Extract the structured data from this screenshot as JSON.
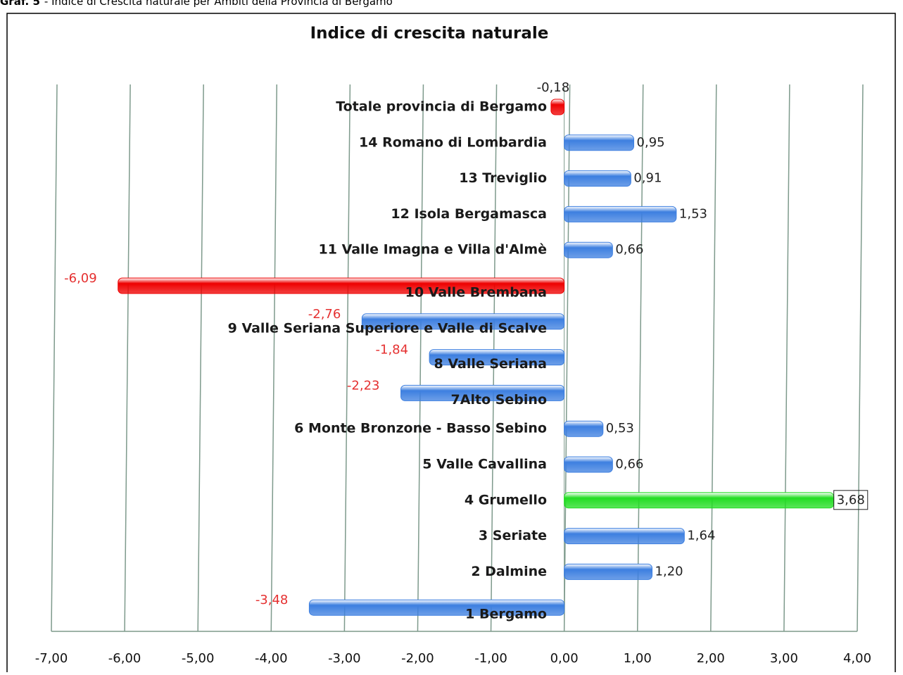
{
  "caption": {
    "number": "Graf. 5",
    "text": "- Indice di Crescita naturale per Ambiti della Provincia di Bergamo"
  },
  "chart_data": {
    "type": "hbar",
    "title": "Indice di crescita naturale",
    "categories": [
      "Totale provincia di Bergamo",
      "14 Romano di Lombardia",
      "13 Treviglio",
      "12 Isola Bergamasca",
      "11 Valle Imagna e Villa d'Almè",
      "10 Valle Brembana",
      "9 Valle Seriana Superiore e Valle di Scalve",
      "8 Valle Seriana",
      "7Alto Sebino",
      "6 Monte Bronzone - Basso Sebino",
      "5 Valle Cavallina",
      "4 Grumello",
      "3 Seriate",
      "2 Dalmine",
      "1 Bergamo"
    ],
    "values": [
      -0.18,
      0.95,
      0.91,
      1.53,
      0.66,
      -6.09,
      -2.76,
      -1.84,
      -2.23,
      0.53,
      0.66,
      3.68,
      1.64,
      1.2,
      -3.48
    ],
    "value_labels": [
      "-0,18",
      "0,95",
      "0,91",
      "1,53",
      "0,66",
      "-6,09",
      "-2,76",
      "-1,84",
      "-2,23",
      "0,53",
      "0,66",
      "3,68",
      "1,64",
      "1,20",
      "-3,48"
    ],
    "colors": [
      "#ee0000",
      "#3d7fe0",
      "#3d7fe0",
      "#3d7fe0",
      "#3d7fe0",
      "#ee0000",
      "#3d7fe0",
      "#3d7fe0",
      "#3d7fe0",
      "#3d7fe0",
      "#3d7fe0",
      "#22dd22",
      "#3d7fe0",
      "#3d7fe0",
      "#3d7fe0"
    ],
    "negative_label_color": "#e53030",
    "xlim": [
      -7,
      4
    ],
    "xticks": [
      {
        "value": -7,
        "label": "-7,00"
      },
      {
        "value": -6,
        "label": "-6,00"
      },
      {
        "value": -5,
        "label": "-5,00"
      },
      {
        "value": -4,
        "label": "-4,00"
      },
      {
        "value": -3,
        "label": "-3,00"
      },
      {
        "value": -2,
        "label": "-2,00"
      },
      {
        "value": -1,
        "label": "-1,00"
      },
      {
        "value": 0,
        "label": "0,00"
      },
      {
        "value": 1,
        "label": "1,00"
      },
      {
        "value": 2,
        "label": "2,00"
      },
      {
        "value": 3,
        "label": "3,00"
      },
      {
        "value": 4,
        "label": "4,00"
      }
    ],
    "grid": true
  }
}
